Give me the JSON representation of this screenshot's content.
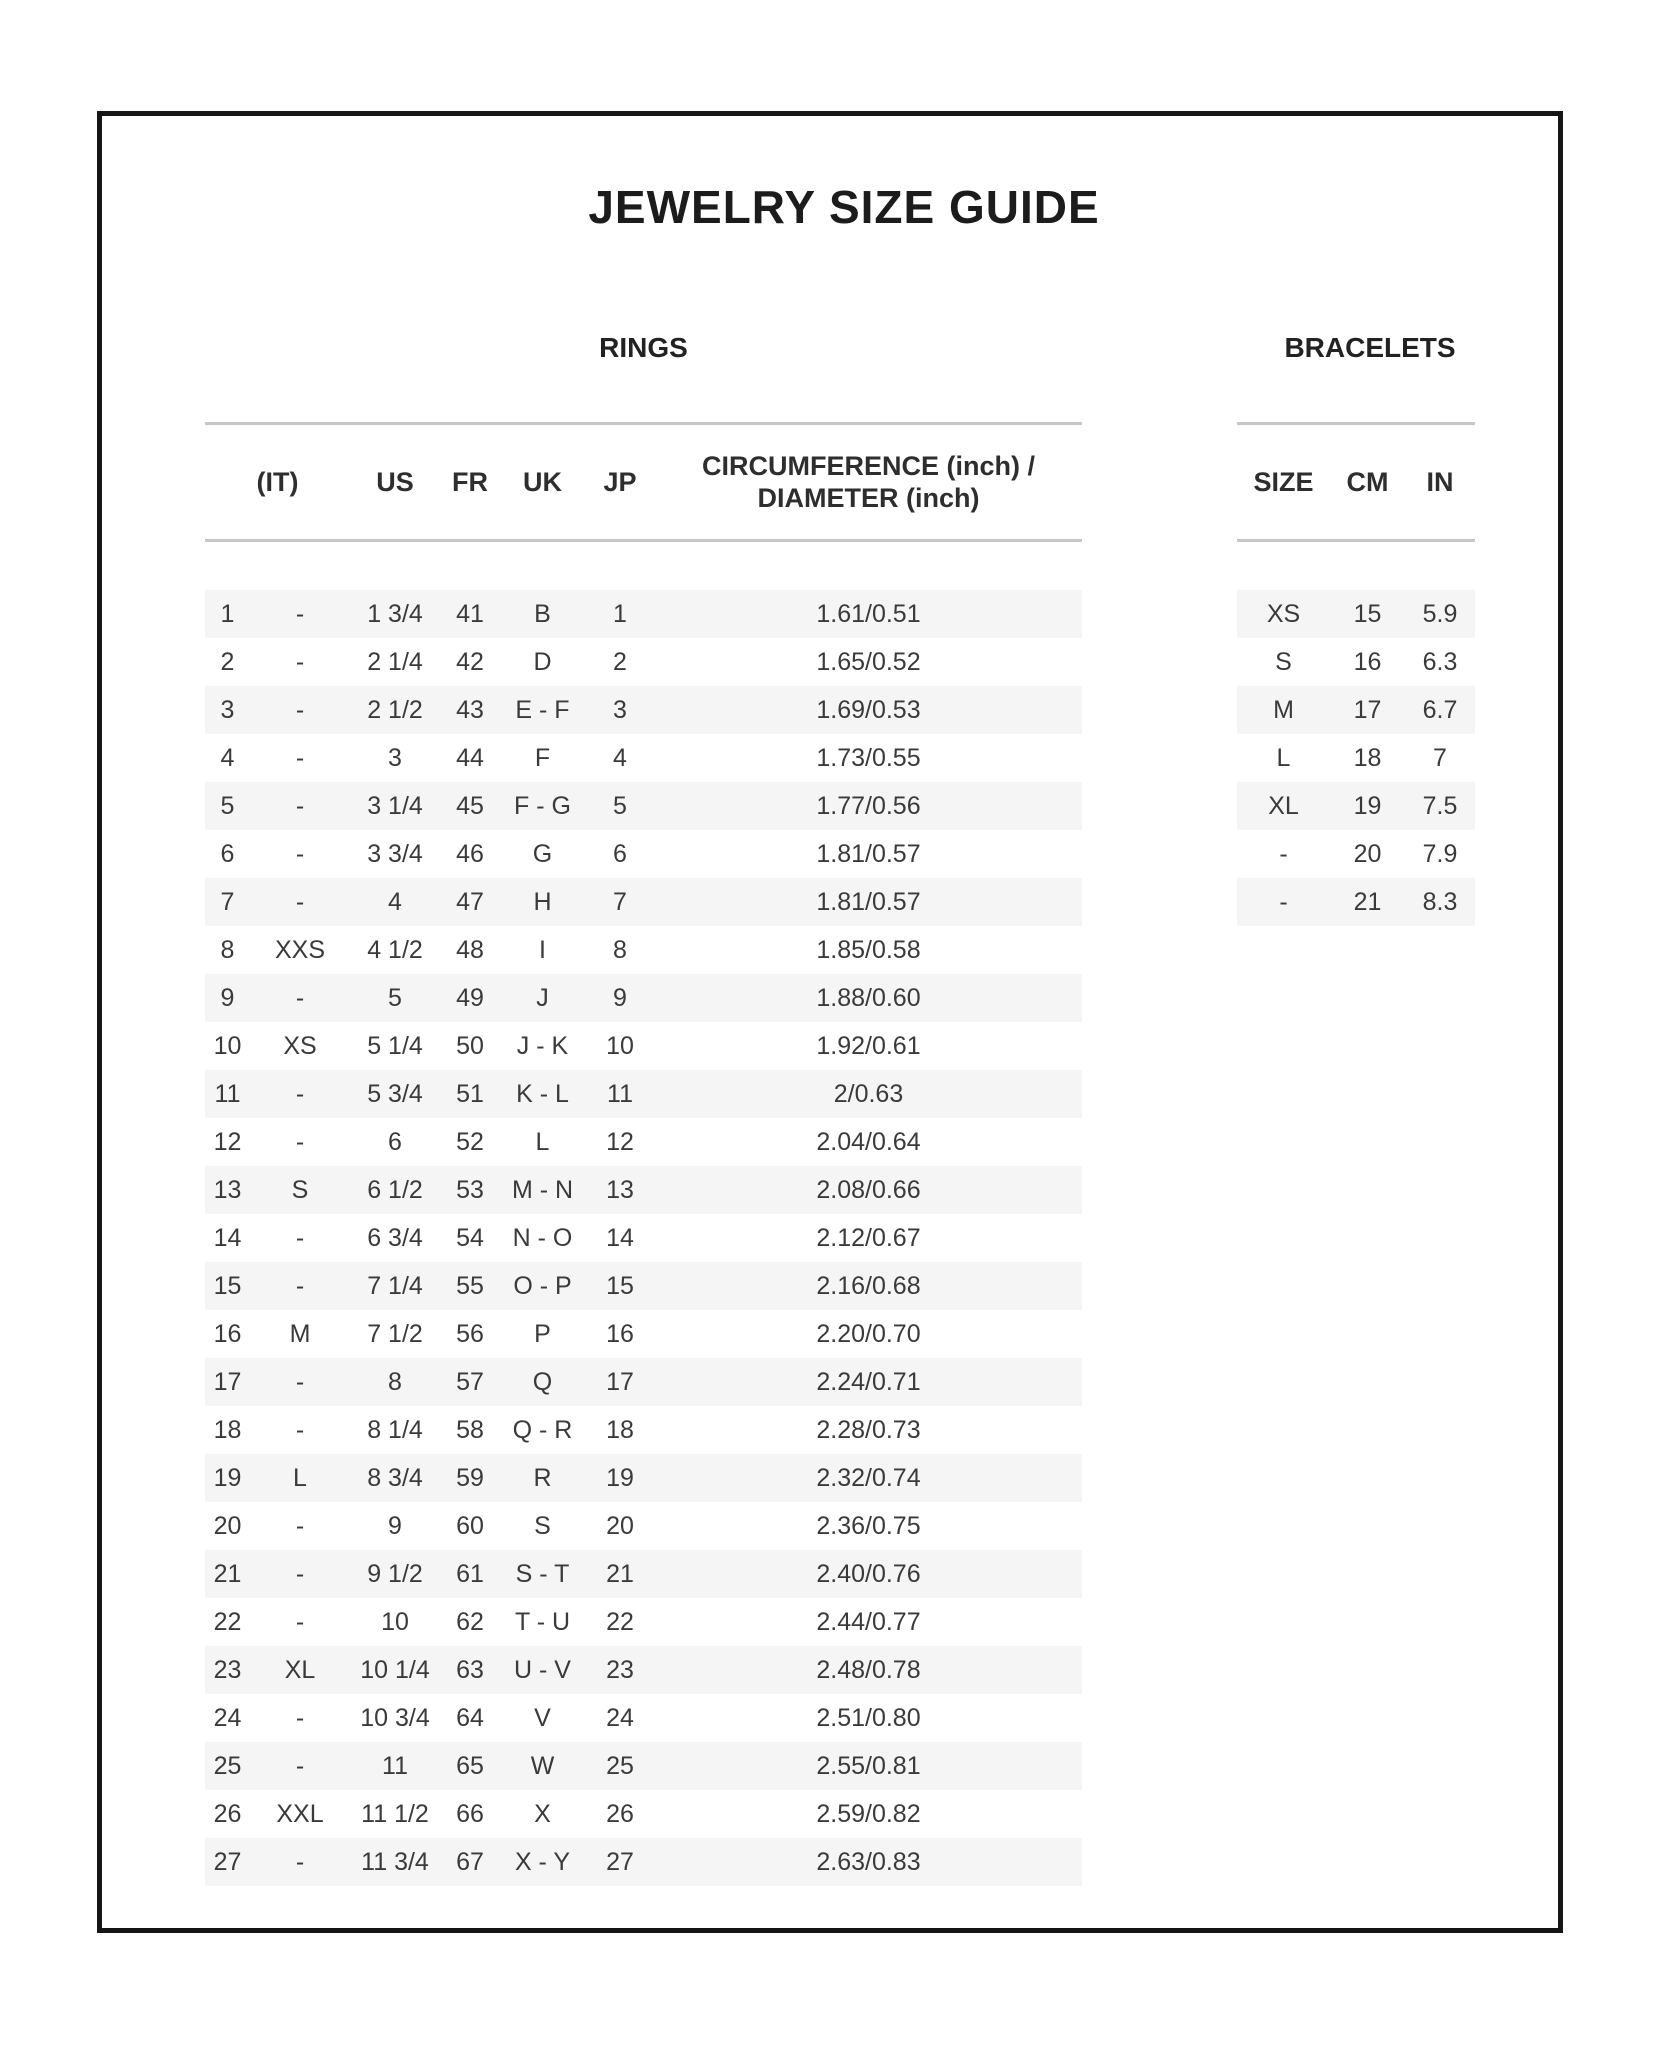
{
  "page": {
    "title": "JEWELRY SIZE GUIDE"
  },
  "rings": {
    "section_title": "RINGS",
    "headers": {
      "it": "(IT)",
      "us": "US",
      "fr": "FR",
      "uk": "UK",
      "jp": "JP",
      "circ_line1": "CIRCUMFERENCE (inch) /",
      "circ_line2": "DIAMETER (inch)"
    },
    "rows": [
      {
        "it": "1",
        "intl": "-",
        "us": "1 3/4",
        "fr": "41",
        "uk": "B",
        "jp": "1",
        "circ": "1.61/0.51"
      },
      {
        "it": "2",
        "intl": "-",
        "us": "2 1/4",
        "fr": "42",
        "uk": "D",
        "jp": "2",
        "circ": "1.65/0.52"
      },
      {
        "it": "3",
        "intl": "-",
        "us": "2 1/2",
        "fr": "43",
        "uk": "E - F",
        "jp": "3",
        "circ": "1.69/0.53"
      },
      {
        "it": "4",
        "intl": "-",
        "us": "3",
        "fr": "44",
        "uk": "F",
        "jp": "4",
        "circ": "1.73/0.55"
      },
      {
        "it": "5",
        "intl": "-",
        "us": "3 1/4",
        "fr": "45",
        "uk": "F - G",
        "jp": "5",
        "circ": "1.77/0.56"
      },
      {
        "it": "6",
        "intl": "-",
        "us": "3 3/4",
        "fr": "46",
        "uk": "G",
        "jp": "6",
        "circ": "1.81/0.57"
      },
      {
        "it": "7",
        "intl": "-",
        "us": "4",
        "fr": "47",
        "uk": "H",
        "jp": "7",
        "circ": "1.81/0.57"
      },
      {
        "it": "8",
        "intl": "XXS",
        "us": "4 1/2",
        "fr": "48",
        "uk": "I",
        "jp": "8",
        "circ": "1.85/0.58"
      },
      {
        "it": "9",
        "intl": "-",
        "us": "5",
        "fr": "49",
        "uk": "J",
        "jp": "9",
        "circ": "1.88/0.60"
      },
      {
        "it": "10",
        "intl": "XS",
        "us": "5 1/4",
        "fr": "50",
        "uk": "J - K",
        "jp": "10",
        "circ": "1.92/0.61"
      },
      {
        "it": "11",
        "intl": "-",
        "us": "5 3/4",
        "fr": "51",
        "uk": "K - L",
        "jp": "11",
        "circ": "2/0.63"
      },
      {
        "it": "12",
        "intl": "-",
        "us": "6",
        "fr": "52",
        "uk": "L",
        "jp": "12",
        "circ": "2.04/0.64"
      },
      {
        "it": "13",
        "intl": "S",
        "us": "6 1/2",
        "fr": "53",
        "uk": "M - N",
        "jp": "13",
        "circ": "2.08/0.66"
      },
      {
        "it": "14",
        "intl": "-",
        "us": "6 3/4",
        "fr": "54",
        "uk": "N - O",
        "jp": "14",
        "circ": "2.12/0.67"
      },
      {
        "it": "15",
        "intl": "-",
        "us": "7 1/4",
        "fr": "55",
        "uk": "O - P",
        "jp": "15",
        "circ": "2.16/0.68"
      },
      {
        "it": "16",
        "intl": "M",
        "us": "7 1/2",
        "fr": "56",
        "uk": "P",
        "jp": "16",
        "circ": "2.20/0.70"
      },
      {
        "it": "17",
        "intl": "-",
        "us": "8",
        "fr": "57",
        "uk": "Q",
        "jp": "17",
        "circ": "2.24/0.71"
      },
      {
        "it": "18",
        "intl": "-",
        "us": "8 1/4",
        "fr": "58",
        "uk": "Q - R",
        "jp": "18",
        "circ": "2.28/0.73"
      },
      {
        "it": "19",
        "intl": "L",
        "us": "8 3/4",
        "fr": "59",
        "uk": "R",
        "jp": "19",
        "circ": "2.32/0.74"
      },
      {
        "it": "20",
        "intl": "-",
        "us": "9",
        "fr": "60",
        "uk": "S",
        "jp": "20",
        "circ": "2.36/0.75"
      },
      {
        "it": "21",
        "intl": "-",
        "us": "9 1/2",
        "fr": "61",
        "uk": "S - T",
        "jp": "21",
        "circ": "2.40/0.76"
      },
      {
        "it": "22",
        "intl": "-",
        "us": "10",
        "fr": "62",
        "uk": "T - U",
        "jp": "22",
        "circ": "2.44/0.77"
      },
      {
        "it": "23",
        "intl": "XL",
        "us": "10 1/4",
        "fr": "63",
        "uk": "U - V",
        "jp": "23",
        "circ": "2.48/0.78"
      },
      {
        "it": "24",
        "intl": "-",
        "us": "10 3/4",
        "fr": "64",
        "uk": "V",
        "jp": "24",
        "circ": "2.51/0.80"
      },
      {
        "it": "25",
        "intl": "-",
        "us": "11",
        "fr": "65",
        "uk": "W",
        "jp": "25",
        "circ": "2.55/0.81"
      },
      {
        "it": "26",
        "intl": "XXL",
        "us": "11 1/2",
        "fr": "66",
        "uk": "X",
        "jp": "26",
        "circ": "2.59/0.82"
      },
      {
        "it": "27",
        "intl": "-",
        "us": "11 3/4",
        "fr": "67",
        "uk": "X - Y",
        "jp": "27",
        "circ": "2.63/0.83"
      }
    ]
  },
  "bracelets": {
    "section_title": "BRACELETS",
    "headers": {
      "size": "SIZE",
      "cm": "CM",
      "in": "IN"
    },
    "rows": [
      {
        "size": "XS",
        "cm": "15",
        "in": "5.9"
      },
      {
        "size": "S",
        "cm": "16",
        "in": "6.3"
      },
      {
        "size": "M",
        "cm": "17",
        "in": "6.7"
      },
      {
        "size": "L",
        "cm": "18",
        "in": "7"
      },
      {
        "size": "XL",
        "cm": "19",
        "in": "7.5"
      },
      {
        "size": "-",
        "cm": "20",
        "in": "7.9"
      },
      {
        "size": "-",
        "cm": "21",
        "in": "8.3"
      }
    ]
  }
}
